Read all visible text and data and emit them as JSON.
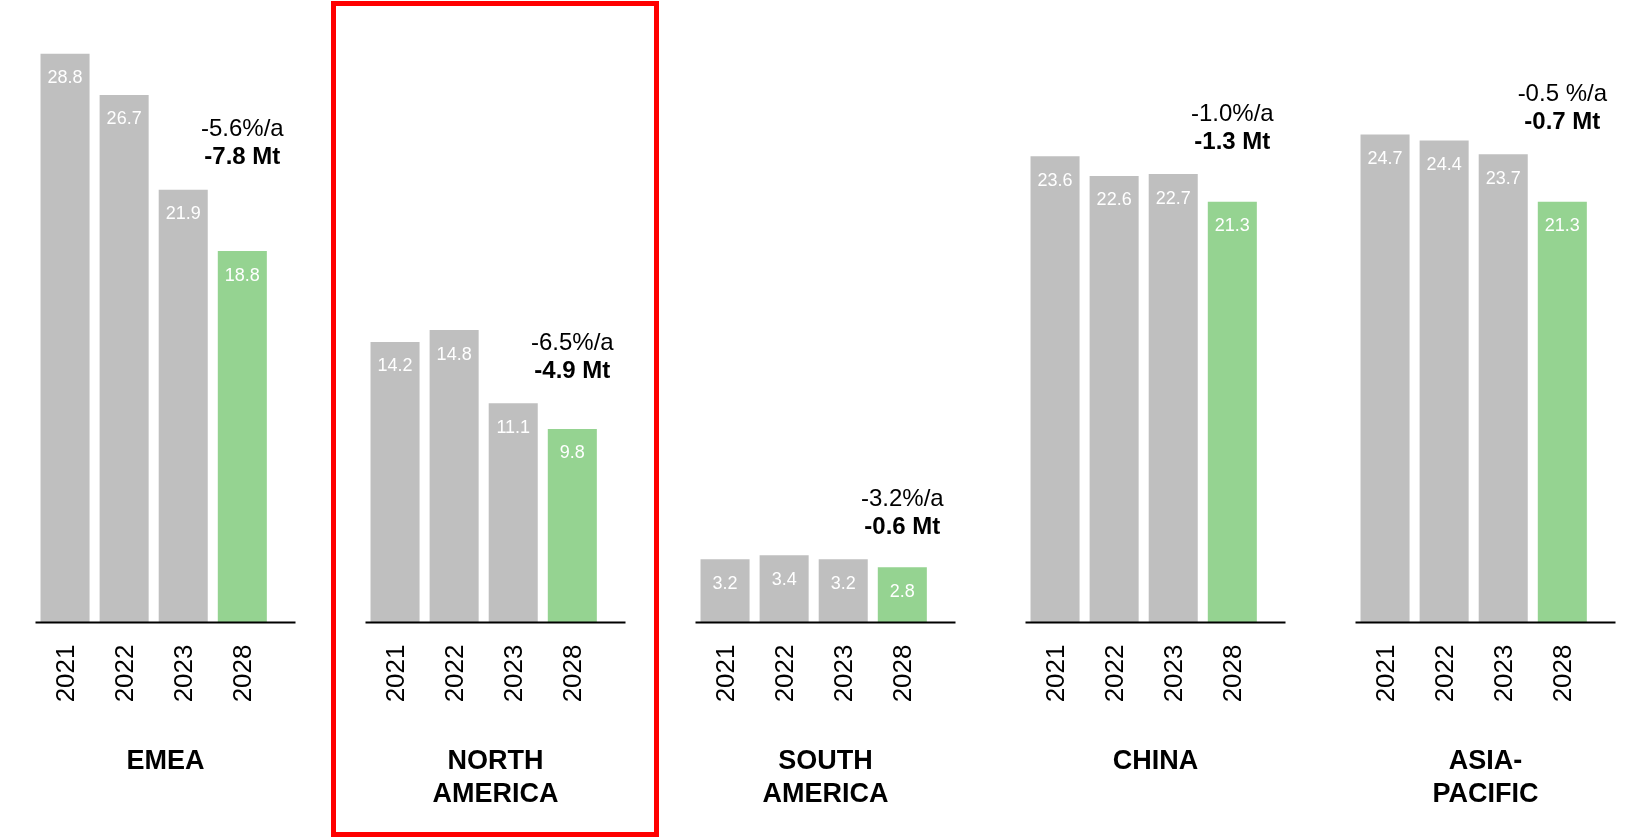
{
  "chart_data": [
    {
      "type": "bar",
      "xlabel": "EMEA",
      "categories": [
        "2021",
        "2022",
        "2023",
        "2028"
      ],
      "values": [
        28.8,
        26.7,
        21.9,
        18.8
      ],
      "colors": [
        "#bfbfbf",
        "#bfbfbf",
        "#bfbfbf",
        "#95d391"
      ],
      "tick_labels": "x",
      "data_labels": true,
      "annotations": [
        "-5.6%/a",
        "-7.8 Mt"
      ]
    },
    {
      "type": "bar",
      "xlabel": "NORTH\nAMERICA",
      "categories": [
        "2021",
        "2022",
        "2023",
        "2028"
      ],
      "values": [
        14.2,
        14.8,
        11.1,
        9.8
      ],
      "colors": [
        "#bfbfbf",
        "#bfbfbf",
        "#bfbfbf",
        "#95d391"
      ],
      "tick_labels": "x",
      "data_labels": true,
      "annotations": [
        "-6.5%/a",
        "-4.9 Mt"
      ]
    },
    {
      "type": "bar",
      "xlabel": "SOUTH\nAMERICA",
      "categories": [
        "2021",
        "2022",
        "2023",
        "2028"
      ],
      "values": [
        3.2,
        3.4,
        3.2,
        2.8
      ],
      "colors": [
        "#bfbfbf",
        "#bfbfbf",
        "#bfbfbf",
        "#95d391"
      ],
      "tick_labels": "x",
      "data_labels": true,
      "annotations": [
        "-3.2%/a",
        "-0.6 Mt"
      ]
    },
    {
      "type": "bar",
      "xlabel": "CHINA",
      "categories": [
        "2021",
        "2022",
        "2023",
        "2028"
      ],
      "values": [
        23.6,
        22.6,
        22.7,
        21.3
      ],
      "colors": [
        "#bfbfbf",
        "#bfbfbf",
        "#bfbfbf",
        "#95d391"
      ],
      "tick_labels": "x",
      "data_labels": true,
      "annotations": [
        "-1.0%/a",
        "-1.3 Mt"
      ]
    },
    {
      "type": "bar",
      "xlabel": "ASIA-\nPACIFIC",
      "categories": [
        "2021",
        "2022",
        "2023",
        "2028"
      ],
      "values": [
        24.7,
        24.4,
        23.7,
        21.3
      ],
      "colors": [
        "#bfbfbf",
        "#bfbfbf",
        "#bfbfbf",
        "#95d391"
      ],
      "tick_labels": "x",
      "data_labels": true,
      "annotations": [
        "-0.5 %/a",
        "-0.7 Mt"
      ]
    }
  ]
}
